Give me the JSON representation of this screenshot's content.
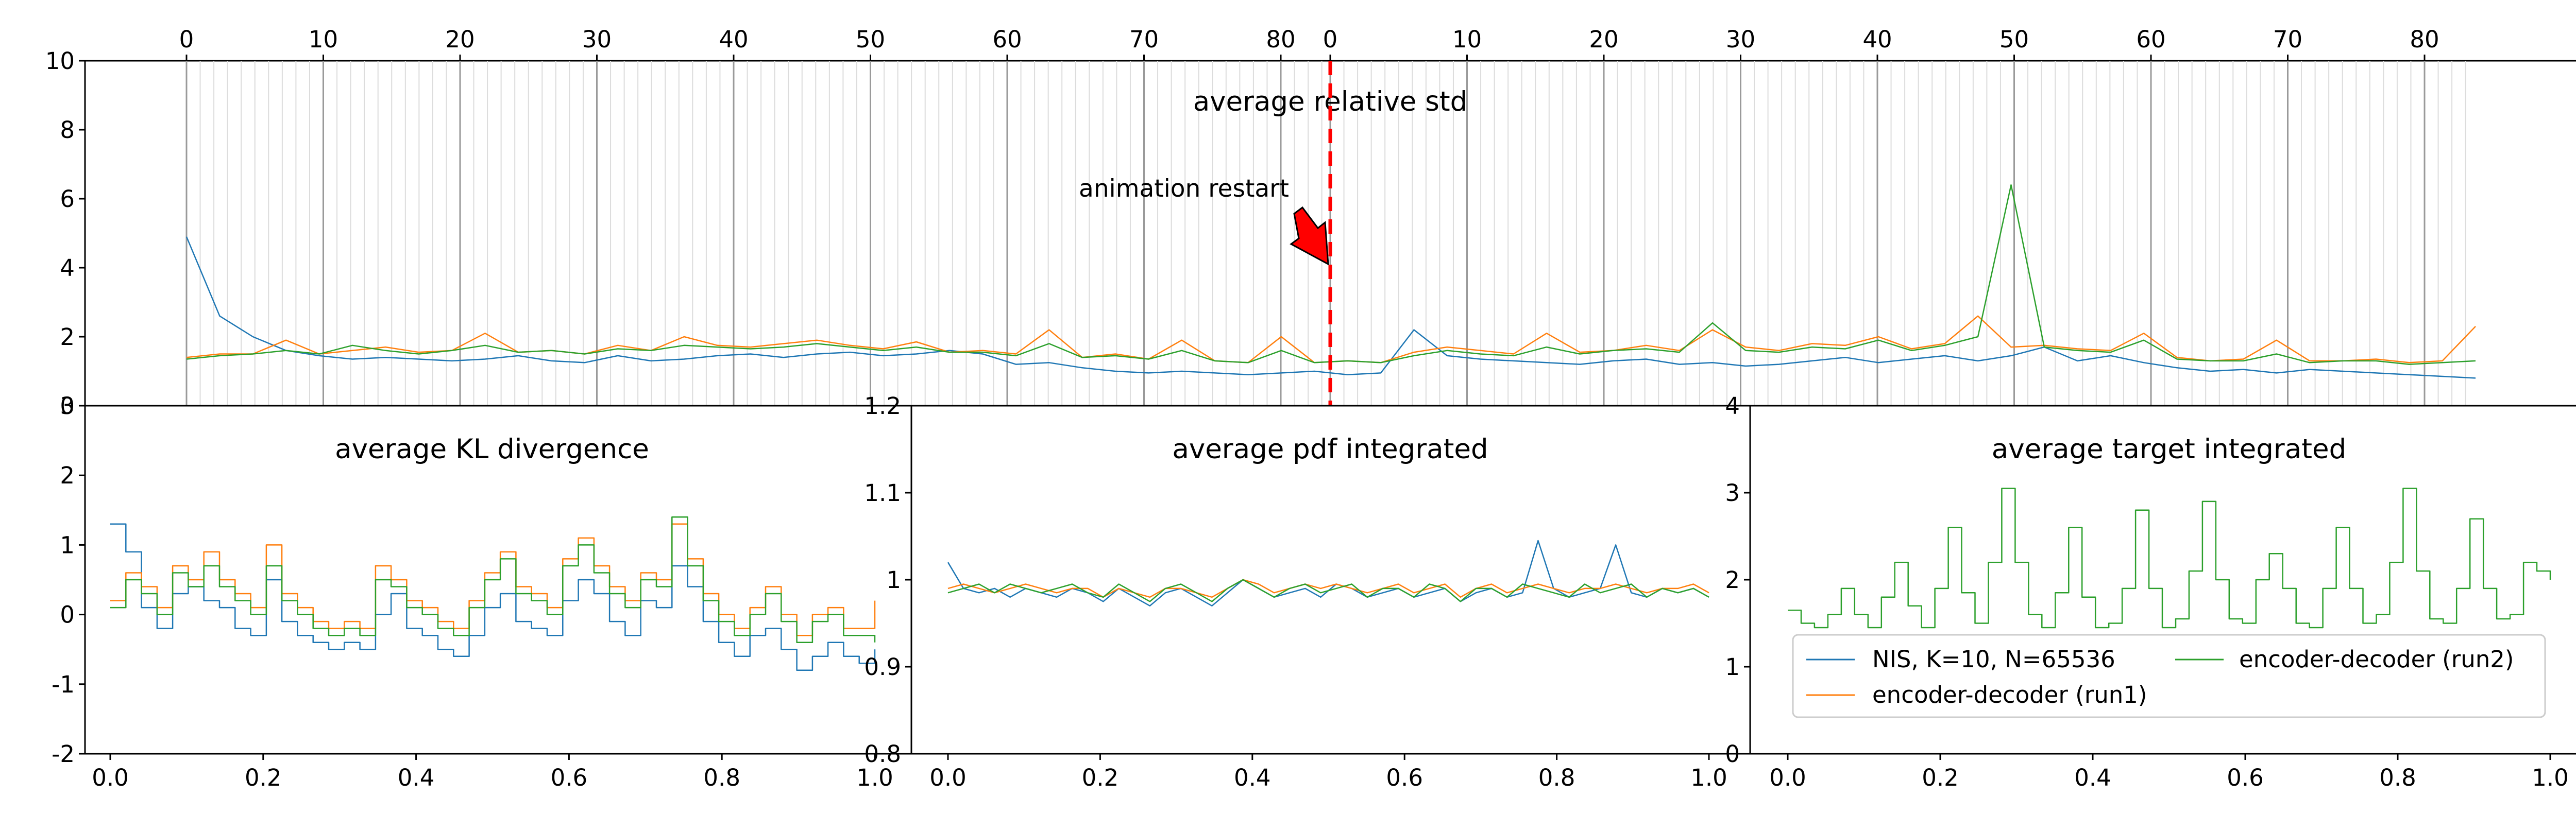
{
  "figure": {
    "legend": {
      "entries": [
        {
          "label": "NIS, K=10, N=65536",
          "color": "#1f77b4"
        },
        {
          "label": "encoder-decoder (run2)",
          "color": "#2ca02c"
        },
        {
          "label": "encoder-decoder (run1)",
          "color": "#ff7f0e"
        }
      ]
    },
    "annotation": {
      "text": "animation restart",
      "arrow_color": "#ff0000",
      "line_color": "#ff0000"
    }
  },
  "chart_data": [
    {
      "id": "top",
      "type": "line",
      "title": "average relative std",
      "xlabel": "",
      "ylabel": "",
      "ylim": [
        0,
        10
      ],
      "yticks": [
        0,
        2,
        4,
        6,
        8,
        10
      ],
      "xticks_top": [
        "0",
        "10",
        "20",
        "30",
        "40",
        "50",
        "60",
        "70",
        "80",
        "0",
        "10",
        "20",
        "30",
        "40",
        "50",
        "60",
        "70",
        "80"
      ],
      "grid": "vertical lines at every animation frame; darker every 10 frames",
      "restart_marker": "dashed red vertical line at the second frame 0",
      "series": [
        {
          "name": "NIS, K=10, N=65536",
          "color": "#1f77b4",
          "values": [
            4.9,
            2.6,
            2.0,
            1.6,
            1.45,
            1.35,
            1.4,
            1.35,
            1.3,
            1.35,
            1.45,
            1.3,
            1.25,
            1.45,
            1.3,
            1.35,
            1.45,
            1.5,
            1.4,
            1.5,
            1.55,
            1.45,
            1.5,
            1.6,
            1.5,
            1.2,
            1.25,
            1.1,
            1.0,
            0.95,
            1.0,
            0.95,
            0.9,
            0.95,
            1.0,
            0.9,
            0.95,
            2.2,
            1.45,
            1.35,
            1.3,
            1.25,
            1.2,
            1.3,
            1.35,
            1.2,
            1.25,
            1.15,
            1.2,
            1.3,
            1.4,
            1.25,
            1.35,
            1.45,
            1.3,
            1.45,
            1.7,
            1.3,
            1.45,
            1.25,
            1.1,
            1.0,
            1.05,
            0.95,
            1.05,
            1.0,
            0.95,
            0.9,
            0.85,
            0.8
          ]
        },
        {
          "name": "encoder-decoder (run1)",
          "color": "#ff7f0e",
          "values": [
            1.4,
            1.5,
            1.5,
            1.9,
            1.5,
            1.6,
            1.7,
            1.55,
            1.6,
            2.1,
            1.55,
            1.6,
            1.5,
            1.75,
            1.6,
            2.0,
            1.75,
            1.7,
            1.8,
            1.9,
            1.75,
            1.65,
            1.85,
            1.55,
            1.6,
            1.5,
            2.2,
            1.4,
            1.5,
            1.35,
            1.9,
            1.3,
            1.25,
            2.0,
            1.25,
            1.3,
            1.25,
            1.55,
            1.7,
            1.6,
            1.5,
            2.1,
            1.55,
            1.6,
            1.75,
            1.6,
            2.2,
            1.7,
            1.6,
            1.8,
            1.75,
            2.0,
            1.65,
            1.8,
            2.6,
            1.7,
            1.75,
            1.65,
            1.6,
            2.1,
            1.4,
            1.3,
            1.35,
            1.9,
            1.3,
            1.3,
            1.35,
            1.25,
            1.3,
            2.3
          ]
        },
        {
          "name": "encoder-decoder (run2)",
          "color": "#2ca02c",
          "values": [
            1.35,
            1.45,
            1.5,
            1.6,
            1.5,
            1.75,
            1.6,
            1.5,
            1.6,
            1.75,
            1.55,
            1.6,
            1.5,
            1.65,
            1.6,
            1.75,
            1.7,
            1.65,
            1.7,
            1.8,
            1.7,
            1.6,
            1.7,
            1.55,
            1.55,
            1.45,
            1.8,
            1.4,
            1.45,
            1.35,
            1.6,
            1.3,
            1.25,
            1.6,
            1.25,
            1.3,
            1.25,
            1.45,
            1.6,
            1.5,
            1.45,
            1.7,
            1.5,
            1.6,
            1.65,
            1.55,
            2.4,
            1.6,
            1.55,
            1.7,
            1.65,
            1.9,
            1.6,
            1.75,
            2.0,
            6.4,
            1.7,
            1.6,
            1.55,
            1.9,
            1.35,
            1.3,
            1.3,
            1.5,
            1.25,
            1.3,
            1.3,
            1.2,
            1.25,
            1.3
          ]
        }
      ]
    },
    {
      "id": "kl",
      "type": "line",
      "title": "average KL divergence",
      "xlabel": "",
      "ylabel": "",
      "xlim": [
        0,
        1
      ],
      "ylim": [
        -2,
        3
      ],
      "xticks": [
        0.0,
        0.2,
        0.4,
        0.6,
        0.8,
        1.0
      ],
      "yticks": [
        -2,
        -1,
        0,
        1,
        2,
        3
      ],
      "series": [
        {
          "name": "NIS, K=10, N=65536",
          "color": "#1f77b4",
          "values": [
            1.3,
            0.9,
            0.1,
            -0.2,
            0.3,
            0.4,
            0.2,
            0.1,
            -0.2,
            -0.3,
            0.5,
            -0.1,
            -0.3,
            -0.4,
            -0.5,
            -0.4,
            -0.5,
            0.0,
            0.3,
            -0.2,
            -0.3,
            -0.5,
            -0.6,
            -0.3,
            0.1,
            0.3,
            -0.1,
            -0.2,
            -0.3,
            0.2,
            0.5,
            0.3,
            -0.1,
            -0.3,
            0.2,
            0.1,
            0.7,
            0.4,
            -0.1,
            -0.4,
            -0.6,
            -0.3,
            -0.2,
            -0.5,
            -0.8,
            -0.6,
            -0.4,
            -0.6,
            -0.7,
            -0.5
          ]
        },
        {
          "name": "encoder-decoder (run1)",
          "color": "#ff7f0e",
          "values": [
            0.2,
            0.6,
            0.4,
            0.1,
            0.7,
            0.5,
            0.9,
            0.5,
            0.3,
            0.1,
            1.0,
            0.3,
            0.1,
            -0.1,
            -0.2,
            -0.1,
            -0.2,
            0.7,
            0.5,
            0.2,
            0.1,
            -0.1,
            -0.2,
            0.2,
            0.6,
            0.9,
            0.4,
            0.3,
            0.1,
            0.8,
            1.1,
            0.7,
            0.4,
            0.2,
            0.6,
            0.5,
            1.3,
            0.8,
            0.3,
            0.0,
            -0.2,
            0.1,
            0.4,
            0.0,
            -0.3,
            0.0,
            0.1,
            -0.2,
            -0.2,
            0.2
          ]
        },
        {
          "name": "encoder-decoder (run2)",
          "color": "#2ca02c",
          "values": [
            0.1,
            0.5,
            0.3,
            0.0,
            0.6,
            0.4,
            0.7,
            0.4,
            0.2,
            0.0,
            0.7,
            0.2,
            0.0,
            -0.2,
            -0.3,
            -0.2,
            -0.3,
            0.5,
            0.4,
            0.1,
            0.0,
            -0.2,
            -0.3,
            0.1,
            0.5,
            0.8,
            0.3,
            0.2,
            0.0,
            0.7,
            1.0,
            0.6,
            0.3,
            0.1,
            0.5,
            0.4,
            1.4,
            0.7,
            0.2,
            -0.1,
            -0.3,
            0.0,
            0.3,
            -0.1,
            -0.4,
            -0.1,
            0.0,
            -0.3,
            -0.3,
            -0.4
          ]
        }
      ]
    },
    {
      "id": "pdf",
      "type": "line",
      "title": "average pdf integrated",
      "xlabel": "",
      "ylabel": "",
      "xlim": [
        0,
        1
      ],
      "ylim": [
        0.8,
        1.2
      ],
      "xticks": [
        0.0,
        0.2,
        0.4,
        0.6,
        0.8,
        1.0
      ],
      "yticks": [
        0.8,
        0.9,
        1.0,
        1.1,
        1.2
      ],
      "series": [
        {
          "name": "NIS, K=10, N=65536",
          "color": "#1f77b4",
          "values": [
            1.02,
            0.99,
            0.985,
            0.99,
            0.98,
            0.99,
            0.985,
            0.98,
            0.99,
            0.985,
            0.975,
            0.99,
            0.98,
            0.97,
            0.985,
            0.99,
            0.98,
            0.97,
            0.985,
            1.0,
            0.99,
            0.98,
            0.985,
            0.99,
            0.98,
            0.995,
            0.99,
            0.98,
            0.985,
            0.99,
            0.98,
            0.985,
            0.99,
            0.975,
            0.985,
            0.99,
            0.98,
            0.985,
            1.045,
            0.99,
            0.98,
            0.985,
            0.99,
            1.04,
            0.985,
            0.98,
            0.99,
            0.985,
            0.99,
            0.98
          ]
        },
        {
          "name": "encoder-decoder (run1)",
          "color": "#ff7f0e",
          "values": [
            0.99,
            0.995,
            0.99,
            0.985,
            0.99,
            0.995,
            0.99,
            0.985,
            0.99,
            0.99,
            0.98,
            0.99,
            0.985,
            0.98,
            0.99,
            0.99,
            0.985,
            0.98,
            0.99,
            1.0,
            0.995,
            0.985,
            0.99,
            0.995,
            0.99,
            0.995,
            0.99,
            0.985,
            0.99,
            0.995,
            0.985,
            0.99,
            0.995,
            0.98,
            0.99,
            0.995,
            0.985,
            0.99,
            0.995,
            0.99,
            0.985,
            0.99,
            0.99,
            0.995,
            0.99,
            0.985,
            0.99,
            0.99,
            0.995,
            0.985
          ]
        },
        {
          "name": "encoder-decoder (run2)",
          "color": "#2ca02c",
          "values": [
            0.985,
            0.99,
            0.995,
            0.985,
            0.995,
            0.99,
            0.985,
            0.99,
            0.995,
            0.985,
            0.98,
            0.995,
            0.985,
            0.975,
            0.99,
            0.995,
            0.985,
            0.975,
            0.99,
            1.0,
            0.99,
            0.98,
            0.99,
            0.995,
            0.985,
            0.99,
            0.995,
            0.98,
            0.99,
            0.99,
            0.98,
            0.995,
            0.99,
            0.975,
            0.99,
            0.99,
            0.98,
            0.995,
            0.99,
            0.985,
            0.98,
            0.995,
            0.985,
            0.99,
            0.995,
            0.98,
            0.99,
            0.985,
            0.99,
            0.98
          ]
        }
      ]
    },
    {
      "id": "target",
      "type": "line",
      "title": "average target integrated",
      "xlabel": "",
      "ylabel": "",
      "xlim": [
        0,
        1
      ],
      "ylim": [
        0,
        4
      ],
      "xticks": [
        0.0,
        0.2,
        0.4,
        0.6,
        0.8,
        1.0
      ],
      "yticks": [
        0,
        1,
        2,
        3,
        4
      ],
      "series": [
        {
          "name": "encoder-decoder (run2)",
          "color": "#2ca02c",
          "values": [
            1.65,
            1.5,
            1.45,
            1.6,
            1.9,
            1.6,
            1.45,
            1.8,
            2.2,
            1.7,
            1.45,
            1.9,
            2.6,
            1.85,
            1.5,
            2.2,
            3.05,
            2.2,
            1.6,
            1.45,
            1.85,
            2.6,
            1.8,
            1.45,
            1.5,
            1.9,
            2.8,
            1.9,
            1.45,
            1.55,
            2.1,
            2.9,
            2.0,
            1.55,
            1.5,
            2.0,
            2.3,
            1.9,
            1.5,
            1.45,
            1.9,
            2.6,
            1.9,
            1.5,
            1.6,
            2.2,
            3.05,
            2.1,
            1.55,
            1.5,
            1.9,
            2.7,
            1.9,
            1.55,
            1.6,
            2.2,
            2.1,
            2.0
          ]
        }
      ]
    }
  ]
}
